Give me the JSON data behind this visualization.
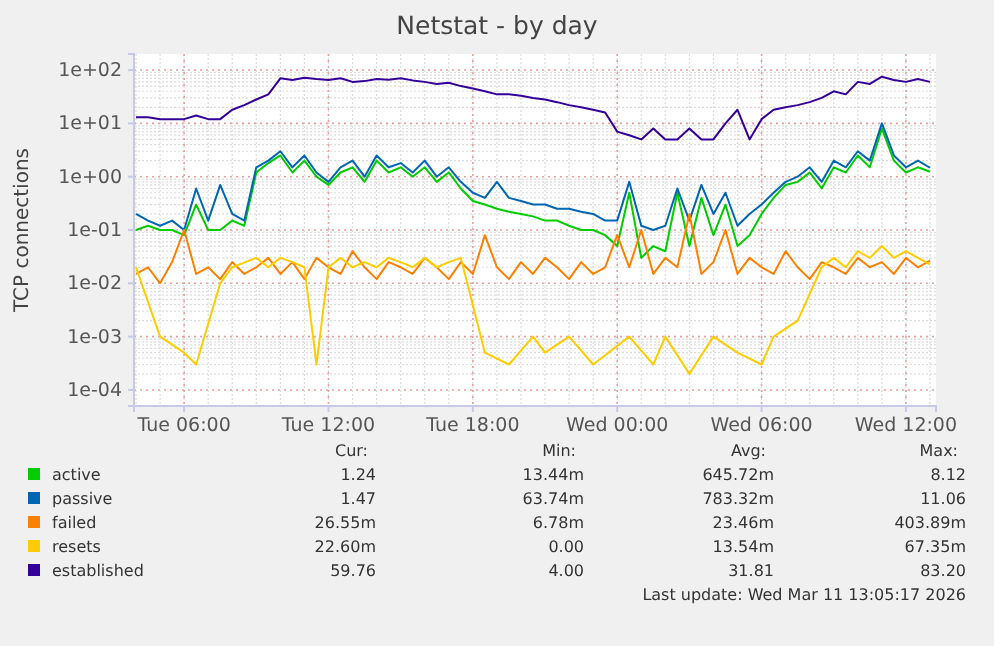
{
  "chart_data": {
    "type": "line",
    "title": "Netstat - by day",
    "ylabel": "TCP connections",
    "log": "y",
    "grid": true,
    "legend": "bottom",
    "marker": "none",
    "line_style": "solid",
    "xlim": [
      "2026-03-10T03:55",
      "2026-03-11T13:15"
    ],
    "xticks": [
      {
        "value": "2026-03-10T06:00",
        "label": "Tue 06:00"
      },
      {
        "value": "2026-03-10T12:00",
        "label": "Tue 12:00"
      },
      {
        "value": "2026-03-10T18:00",
        "label": "Tue 18:00"
      },
      {
        "value": "2026-03-11T00:00",
        "label": "Wed 00:00"
      },
      {
        "value": "2026-03-11T06:00",
        "label": "Wed 06:00"
      },
      {
        "value": "2026-03-11T12:00",
        "label": "Wed 12:00"
      }
    ],
    "ylim": [
      5e-05,
      200
    ],
    "yticks": [
      {
        "value": 0.0001,
        "label": "1e-04"
      },
      {
        "value": 0.001,
        "label": "1e-03"
      },
      {
        "value": 0.01,
        "label": "1e-02"
      },
      {
        "value": 0.1,
        "label": "1e-01"
      },
      {
        "value": 1,
        "label": "1e+00"
      },
      {
        "value": 10,
        "label": "1e+01"
      },
      {
        "value": 100,
        "label": "1e+02"
      }
    ],
    "x": [
      "2026-03-10T04:00",
      "2026-03-10T04:30",
      "2026-03-10T05:00",
      "2026-03-10T05:30",
      "2026-03-10T06:00",
      "2026-03-10T06:30",
      "2026-03-10T07:00",
      "2026-03-10T07:30",
      "2026-03-10T08:00",
      "2026-03-10T08:30",
      "2026-03-10T09:00",
      "2026-03-10T09:30",
      "2026-03-10T10:00",
      "2026-03-10T10:30",
      "2026-03-10T11:00",
      "2026-03-10T11:30",
      "2026-03-10T12:00",
      "2026-03-10T12:30",
      "2026-03-10T13:00",
      "2026-03-10T13:30",
      "2026-03-10T14:00",
      "2026-03-10T14:30",
      "2026-03-10T15:00",
      "2026-03-10T15:30",
      "2026-03-10T16:00",
      "2026-03-10T16:30",
      "2026-03-10T17:00",
      "2026-03-10T17:30",
      "2026-03-10T18:00",
      "2026-03-10T18:30",
      "2026-03-10T19:00",
      "2026-03-10T19:30",
      "2026-03-10T20:00",
      "2026-03-10T20:30",
      "2026-03-10T21:00",
      "2026-03-10T21:30",
      "2026-03-10T22:00",
      "2026-03-10T22:30",
      "2026-03-10T23:00",
      "2026-03-10T23:30",
      "2026-03-11T00:00",
      "2026-03-11T00:30",
      "2026-03-11T01:00",
      "2026-03-11T01:30",
      "2026-03-11T02:00",
      "2026-03-11T02:30",
      "2026-03-11T03:00",
      "2026-03-11T03:30",
      "2026-03-11T04:00",
      "2026-03-11T04:30",
      "2026-03-11T05:00",
      "2026-03-11T05:30",
      "2026-03-11T06:00",
      "2026-03-11T06:30",
      "2026-03-11T07:00",
      "2026-03-11T07:30",
      "2026-03-11T08:00",
      "2026-03-11T08:30",
      "2026-03-11T09:00",
      "2026-03-11T09:30",
      "2026-03-11T10:00",
      "2026-03-11T10:30",
      "2026-03-11T11:00",
      "2026-03-11T11:30",
      "2026-03-11T12:00",
      "2026-03-11T12:30",
      "2026-03-11T13:00"
    ],
    "series": [
      {
        "name": "active",
        "color": "#00cc00",
        "values": [
          0.1,
          0.12,
          0.1,
          0.1,
          0.08,
          0.3,
          0.1,
          0.1,
          0.15,
          0.12,
          1.2,
          1.8,
          2.5,
          1.2,
          2,
          1,
          0.7,
          1.2,
          1.5,
          0.8,
          2,
          1.2,
          1.5,
          1,
          1.5,
          0.8,
          1.2,
          0.6,
          0.35,
          0.3,
          0.25,
          0.22,
          0.2,
          0.18,
          0.15,
          0.15,
          0.12,
          0.1,
          0.1,
          0.08,
          0.05,
          0.5,
          0.03,
          0.05,
          0.04,
          0.5,
          0.05,
          0.4,
          0.08,
          0.3,
          0.05,
          0.08,
          0.2,
          0.4,
          0.7,
          0.8,
          1.2,
          0.6,
          1.5,
          1.2,
          2.5,
          1.5,
          8,
          2,
          1.2,
          1.5,
          1.24
        ]
      },
      {
        "name": "passive",
        "color": "#0066b3",
        "values": [
          0.2,
          0.15,
          0.12,
          0.15,
          0.1,
          0.6,
          0.15,
          0.7,
          0.2,
          0.15,
          1.5,
          2,
          3,
          1.5,
          2.5,
          1.2,
          0.8,
          1.5,
          2,
          1,
          2.5,
          1.5,
          1.8,
          1.2,
          2,
          1,
          1.5,
          0.8,
          0.5,
          0.4,
          0.8,
          0.4,
          0.35,
          0.3,
          0.3,
          0.25,
          0.25,
          0.22,
          0.2,
          0.15,
          0.15,
          0.8,
          0.12,
          0.1,
          0.12,
          0.6,
          0.15,
          0.7,
          0.2,
          0.5,
          0.12,
          0.2,
          0.3,
          0.5,
          0.8,
          1,
          1.5,
          0.8,
          2,
          1.5,
          3,
          2,
          10,
          2.5,
          1.5,
          2,
          1.47
        ]
      },
      {
        "name": "failed",
        "color": "#ff8000",
        "values": [
          0.015,
          0.02,
          0.01,
          0.025,
          0.1,
          0.015,
          0.02,
          0.012,
          0.025,
          0.015,
          0.02,
          0.03,
          0.015,
          0.025,
          0.012,
          0.03,
          0.02,
          0.015,
          0.04,
          0.02,
          0.012,
          0.025,
          0.02,
          0.015,
          0.03,
          0.02,
          0.012,
          0.025,
          0.015,
          0.08,
          0.02,
          0.012,
          0.025,
          0.015,
          0.03,
          0.02,
          0.012,
          0.025,
          0.015,
          0.02,
          0.08,
          0.02,
          0.1,
          0.015,
          0.03,
          0.02,
          0.2,
          0.015,
          0.025,
          0.1,
          0.015,
          0.03,
          0.02,
          0.015,
          0.04,
          0.02,
          0.012,
          0.025,
          0.02,
          0.015,
          0.03,
          0.02,
          0.025,
          0.015,
          0.03,
          0.02,
          0.0266
        ]
      },
      {
        "name": "resets",
        "color": "#ffcc00",
        "values": [
          0.02,
          null,
          0.001,
          null,
          0.0005,
          0.0003,
          null,
          0.01,
          0.02,
          null,
          0.03,
          0.02,
          0.03,
          0.025,
          0.02,
          0.0003,
          0.02,
          0.03,
          0.02,
          0.025,
          0.02,
          0.03,
          0.025,
          0.02,
          0.03,
          0.02,
          0.025,
          0.03,
          null,
          0.0005,
          null,
          0.0003,
          null,
          0.001,
          0.0005,
          null,
          0.001,
          null,
          0.0003,
          null,
          null,
          0.001,
          null,
          0.0003,
          0.001,
          null,
          0.0002,
          null,
          0.001,
          null,
          0.0005,
          null,
          0.0003,
          0.001,
          null,
          0.002,
          null,
          0.02,
          0.03,
          0.02,
          0.04,
          0.03,
          0.05,
          0.03,
          0.04,
          0.03,
          0.0226
        ]
      },
      {
        "name": "established",
        "color": "#330099",
        "values": [
          13,
          13,
          12,
          12,
          12,
          14,
          12,
          12,
          18,
          22,
          28,
          35,
          70,
          65,
          72,
          68,
          65,
          70,
          60,
          62,
          68,
          66,
          70,
          64,
          60,
          55,
          58,
          50,
          45,
          40,
          35,
          35,
          33,
          30,
          28,
          25,
          22,
          20,
          18,
          16,
          7,
          6,
          5,
          8,
          5,
          5,
          8,
          5,
          5,
          10,
          18,
          5,
          12,
          18,
          20,
          22,
          25,
          30,
          40,
          35,
          60,
          55,
          75,
          65,
          60,
          68,
          60
        ]
      }
    ],
    "annotations": [
      "Cur:",
      "Min:",
      "Avg:",
      "Max:",
      "1.24",
      "13.44m",
      "645.72m",
      "8.12",
      "1.47",
      "63.74m",
      "783.32m",
      "11.06",
      "26.55m",
      "6.78m",
      "23.46m",
      "403.89m",
      "22.60m",
      "0.00",
      "13.54m",
      "67.35m",
      "59.76",
      "4.00",
      "31.81",
      "83.20",
      "Last update: Wed Mar 11 13:05:17 2026"
    ]
  }
}
